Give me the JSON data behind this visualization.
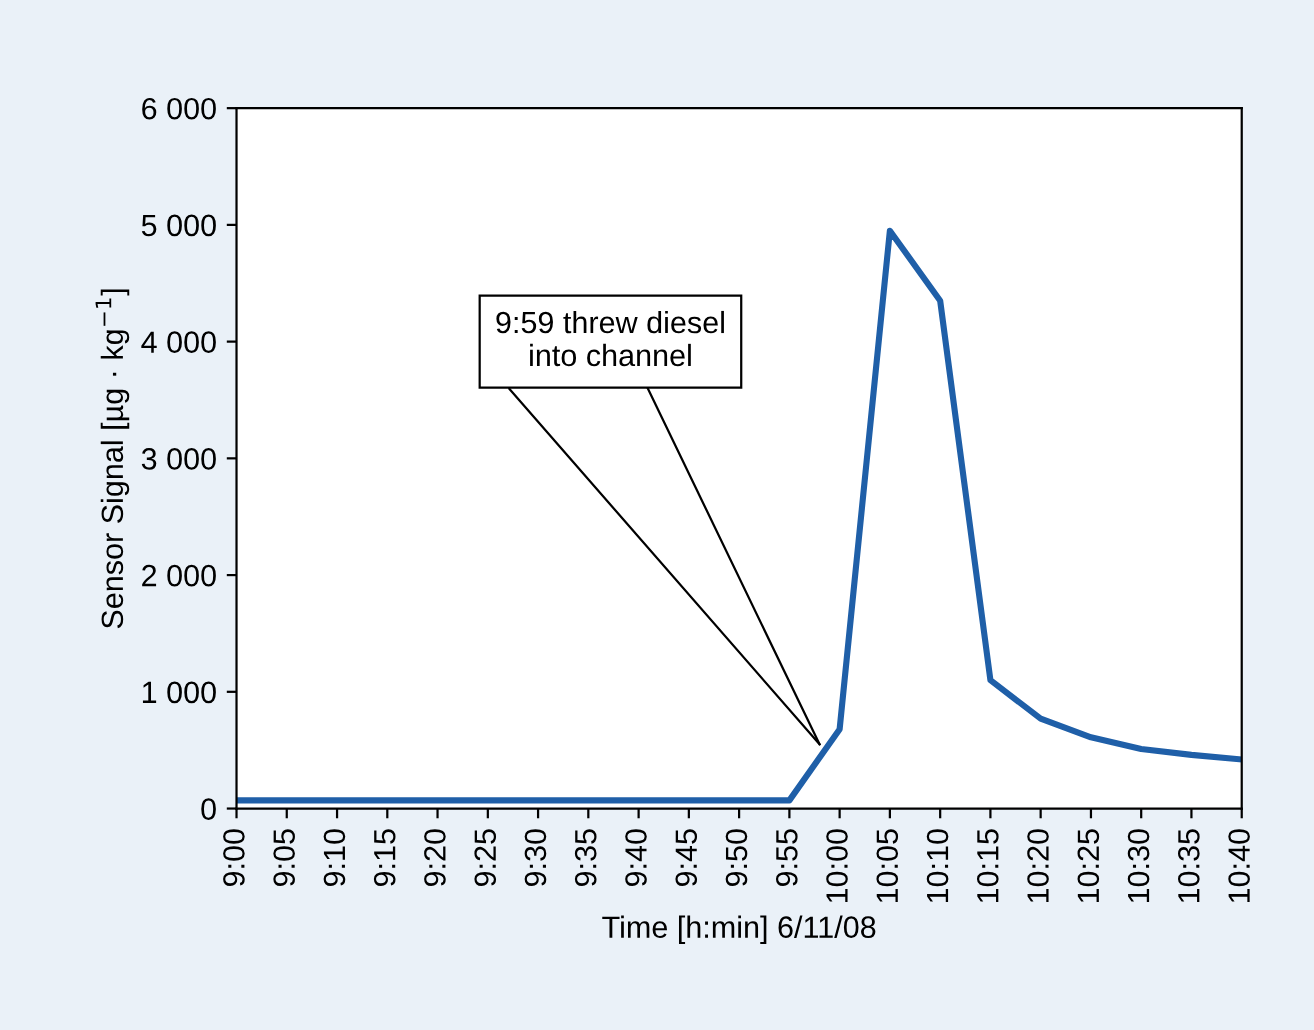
{
  "chart_data": {
    "type": "line",
    "xlabel": "Time [h:min] 6/11/08",
    "ylabel": "Sensor Signal [µg · kg$^{−1}$]",
    "x": [
      9.0,
      9.0833,
      9.1667,
      9.25,
      9.3333,
      9.4167,
      9.5,
      9.5833,
      9.6667,
      9.75,
      9.8333,
      9.9167,
      10.0,
      10.0833,
      10.1667,
      10.25,
      10.3333,
      10.4167,
      10.5,
      10.5833,
      10.6667
    ],
    "series": [
      {
        "color": "#1f5fa8",
        "values": [
          70,
          70,
          70,
          70,
          70,
          70,
          70,
          70,
          70,
          70,
          70,
          70,
          680,
          4950,
          4350,
          1100,
          770,
          610,
          510,
          460,
          420
        ]
      }
    ],
    "xlim": [
      9.0,
      10.6667
    ],
    "xticks": [
      {
        "value": 9.0,
        "label": "9:00"
      },
      {
        "value": 9.0833,
        "label": "9:05"
      },
      {
        "value": 9.1667,
        "label": "9:10"
      },
      {
        "value": 9.25,
        "label": "9:15"
      },
      {
        "value": 9.3333,
        "label": "9:20"
      },
      {
        "value": 9.4167,
        "label": "9:25"
      },
      {
        "value": 9.5,
        "label": "9:30"
      },
      {
        "value": 9.5833,
        "label": "9:35"
      },
      {
        "value": 9.6667,
        "label": "9:40"
      },
      {
        "value": 9.75,
        "label": "9:45"
      },
      {
        "value": 9.8333,
        "label": "9:50"
      },
      {
        "value": 9.9167,
        "label": "9:55"
      },
      {
        "value": 10.0,
        "label": "10:00"
      },
      {
        "value": 10.0833,
        "label": "10:05"
      },
      {
        "value": 10.1667,
        "label": "10:10"
      },
      {
        "value": 10.25,
        "label": "10:15"
      },
      {
        "value": 10.3333,
        "label": "10:20"
      },
      {
        "value": 10.4167,
        "label": "10:25"
      },
      {
        "value": 10.5,
        "label": "10:30"
      },
      {
        "value": 10.5833,
        "label": "10:35"
      },
      {
        "value": 10.6667,
        "label": "10:40"
      }
    ],
    "ylim": [
      0,
      6000
    ],
    "yticks": [
      0,
      {
        "value": 1000,
        "label": "1 000"
      },
      {
        "value": 2000,
        "label": "2 000"
      },
      {
        "value": 3000,
        "label": "3 000"
      },
      {
        "value": 4000,
        "label": "4 000"
      },
      {
        "value": 5000,
        "label": "5 000"
      },
      {
        "value": 6000,
        "label": "6 000"
      }
    ],
    "annotations": [
      {
        "text": "9:59 threw diesel\ninto channel",
        "x": 9.9667,
        "y": 550
      }
    ],
    "grid": false,
    "marker": "none",
    "line_style": "solid"
  }
}
